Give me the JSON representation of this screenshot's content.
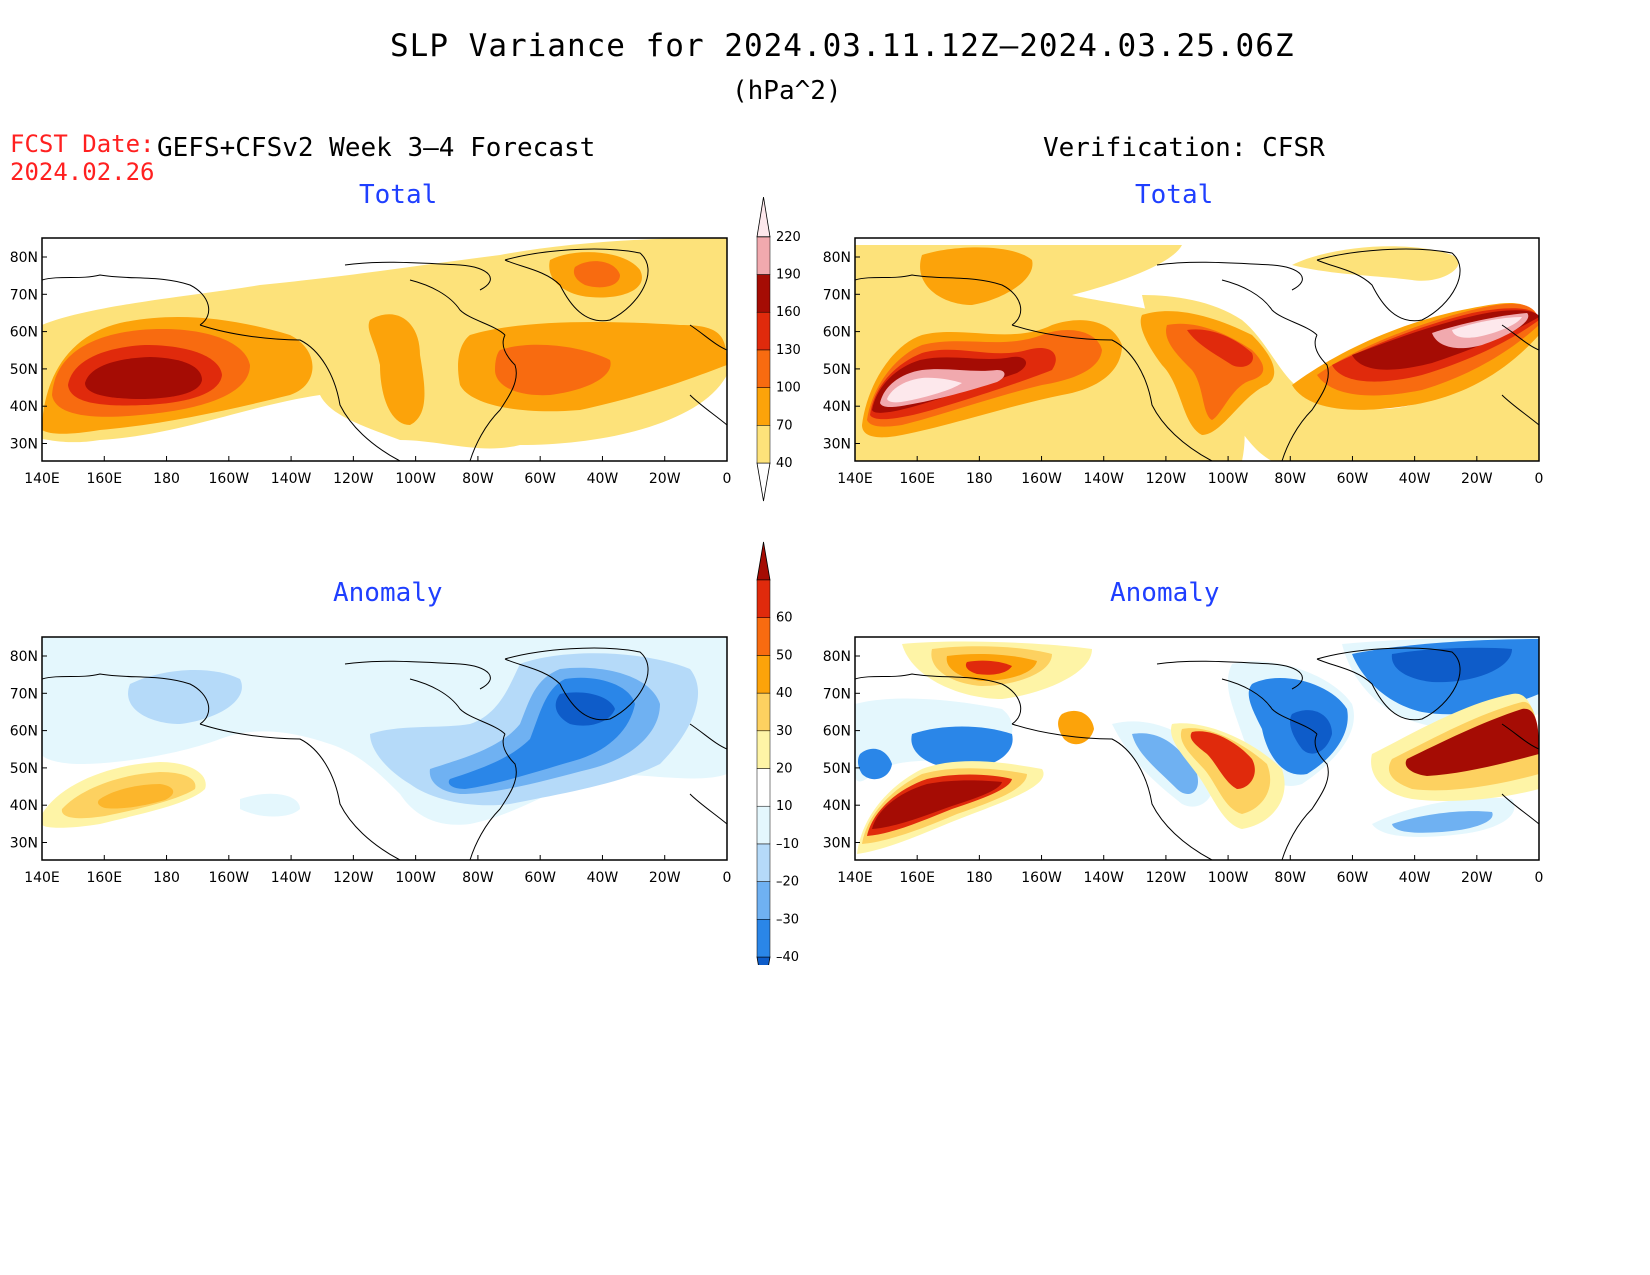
{
  "title": "SLP Variance for 2024.03.11.12Z–2024.03.25.06Z",
  "units": "(hPa^2)",
  "fcst_date_label": "FCST Date:",
  "fcst_date_value": "2024.02.26",
  "left_header": "GEFS+CFSv2 Week 3–4 Forecast",
  "right_header": "Verification: CFSR",
  "panels": {
    "forecast_total": {
      "title": "Total"
    },
    "verification_total": {
      "title": "Total"
    },
    "forecast_anomaly": {
      "title": "Anomaly"
    },
    "verification_anomaly": {
      "title": "Anomaly"
    }
  },
  "lat_labels": [
    "80N",
    "70N",
    "60N",
    "50N",
    "40N",
    "30N"
  ],
  "lon_labels": [
    "140E",
    "160E",
    "180",
    "160W",
    "140W",
    "120W",
    "100W",
    "80W",
    "60W",
    "40W",
    "20W",
    "0"
  ],
  "total_colorbar": {
    "levels": [
      "40",
      "70",
      "100",
      "130",
      "160",
      "190",
      "220"
    ],
    "colors": [
      "#fde27a",
      "#fca30a",
      "#f86b10",
      "#e02a0c",
      "#a50c04",
      "#f1a9ae",
      "#fde8ec"
    ]
  },
  "anomaly_colorbar": {
    "levels": [
      "–40",
      "–30",
      "–20",
      "–10",
      "10",
      "20",
      "30",
      "40",
      "50",
      "60"
    ],
    "colors": [
      "#0e5cc9",
      "#2a86e8",
      "#6fb1f2",
      "#b5daf9",
      "#e4f7fd",
      "#ffffff",
      "#fef4a6",
      "#fdd160",
      "#fca30a",
      "#f86b10",
      "#e02a0c",
      "#a50c04"
    ]
  }
}
